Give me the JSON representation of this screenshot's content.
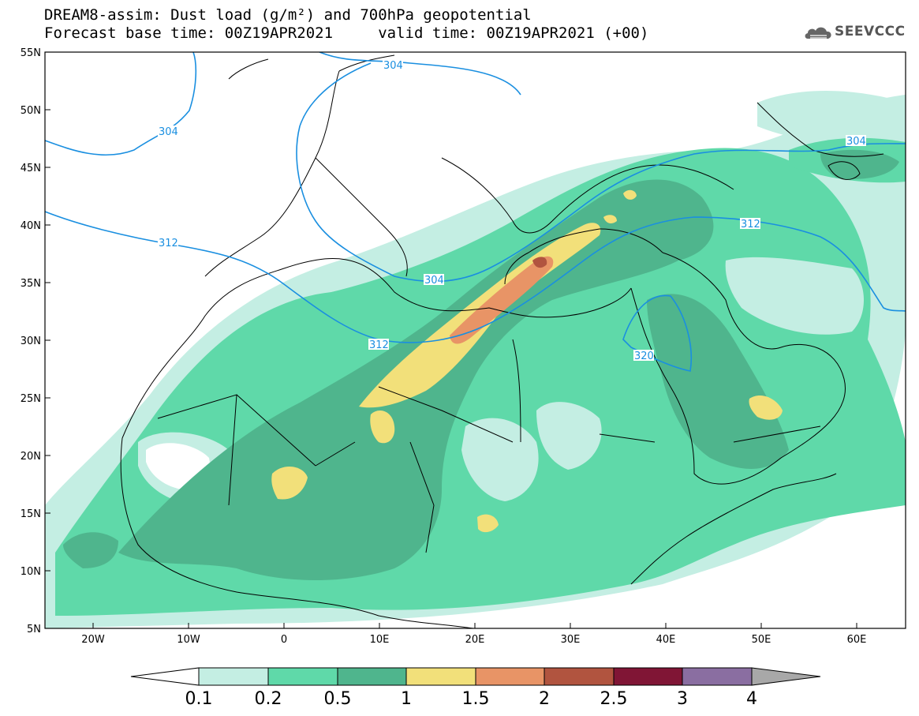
{
  "title": {
    "line1": "DREAM8-assim: Dust load (g/m²) and 700hPa geopotential",
    "line2": "Forecast base time: 00Z19APR2021     valid time: 00Z19APR2021 (+00)"
  },
  "logo": {
    "text": "SEEVCCC",
    "icon": "cloud-icon"
  },
  "map": {
    "lon_range": [
      -25,
      65
    ],
    "lat_range": [
      5,
      55
    ],
    "lat_ticks": [
      "55N",
      "50N",
      "45N",
      "40N",
      "35N",
      "30N",
      "25N",
      "20N",
      "15N",
      "10N",
      "5N"
    ],
    "lon_ticks": [
      "20W",
      "10W",
      "0",
      "10E",
      "20E",
      "30E",
      "40E",
      "50E",
      "60E"
    ],
    "contour_color": "#1a8fe0",
    "contour_labels": [
      "304",
      "304",
      "312",
      "304",
      "312",
      "312",
      "304",
      "320"
    ]
  },
  "colorbar": {
    "labels": [
      "0.1",
      "0.2",
      "0.5",
      "1",
      "1.5",
      "2",
      "2.5",
      "3",
      "4"
    ],
    "colors": [
      "#ffffff",
      "#c4eee3",
      "#5fd9a9",
      "#4fb58d",
      "#f2e07a",
      "#e89466",
      "#b1543f",
      "#801535",
      "#8a6ea1",
      "#a8a8a8"
    ]
  }
}
